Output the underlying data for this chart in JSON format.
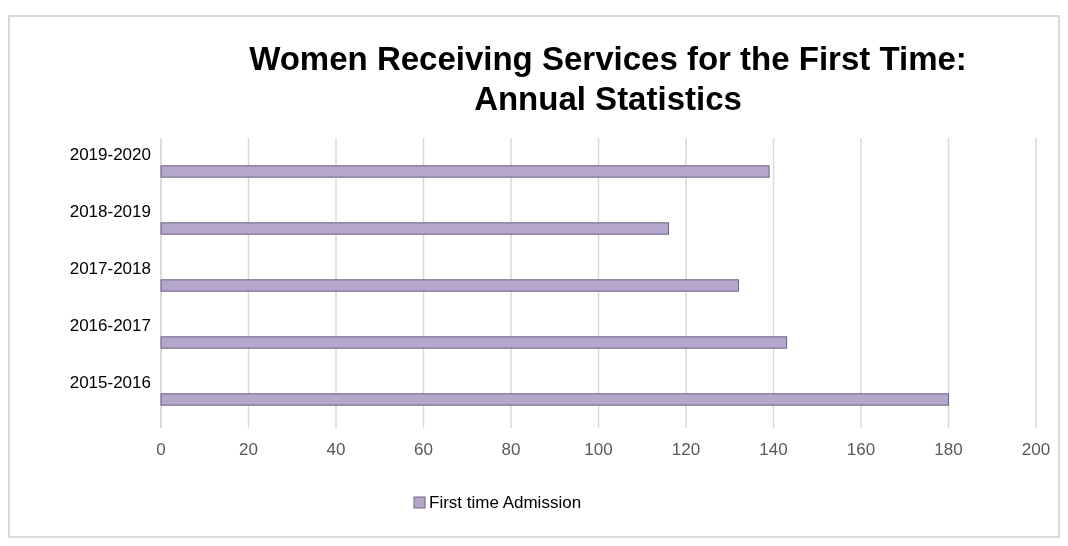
{
  "chart_data": {
    "type": "bar",
    "orientation": "horizontal",
    "title": "Women Receiving Services for the First Time: Annual Statistics",
    "categories": [
      "2019-2020",
      "2018-2019",
      "2017-2018",
      "2016-2017",
      "2015-2016"
    ],
    "series": [
      {
        "name": "First time Admission",
        "color": "#b4a6cc",
        "values": [
          139,
          116,
          132,
          143,
          180
        ]
      }
    ],
    "xlim": [
      0,
      200
    ],
    "xticks": [
      0,
      20,
      40,
      60,
      80,
      100,
      120,
      140,
      160,
      180,
      200
    ],
    "grid": "x",
    "legend": "bottom"
  }
}
